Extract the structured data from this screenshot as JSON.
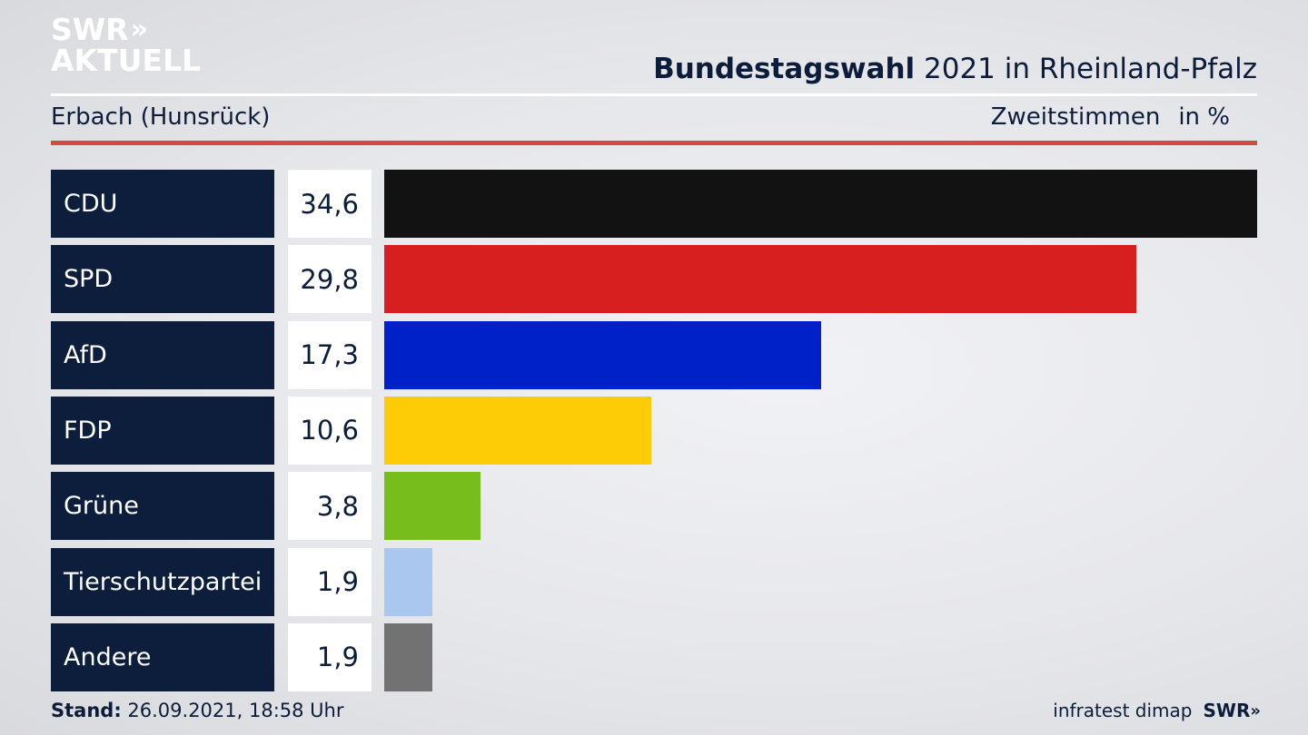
{
  "logo": {
    "line1": "SWR",
    "chevrons": "»",
    "line2": "AKTUELL"
  },
  "header": {
    "title_bold": "Bundestagswahl",
    "title_rest": " 2021 in Rheinland-Pfalz",
    "location": "Erbach (Hunsrück)",
    "measure": "Zweitstimmen",
    "unit": "in %"
  },
  "chart_data": {
    "type": "bar",
    "orientation": "horizontal",
    "categories": [
      "CDU",
      "SPD",
      "AfD",
      "FDP",
      "Grüne",
      "Tierschutzpartei",
      "Andere"
    ],
    "values": [
      34.6,
      29.8,
      17.3,
      10.6,
      3.8,
      1.9,
      1.9
    ],
    "value_labels": [
      "34,6",
      "29,8",
      "17,3",
      "10,6",
      "3,8",
      "1,9",
      "1,9"
    ],
    "colors": [
      "#121212",
      "#d71f1f",
      "#0021c8",
      "#fecc06",
      "#75be1c",
      "#aac8ef",
      "#727272"
    ],
    "xlim": [
      0,
      34.6
    ]
  },
  "footer": {
    "stand_label": "Stand:",
    "stand_value": " 26.09.2021, 18:58 Uhr",
    "source": "infratest dimap",
    "brand": "SWR",
    "brand_chevrons": "»"
  }
}
